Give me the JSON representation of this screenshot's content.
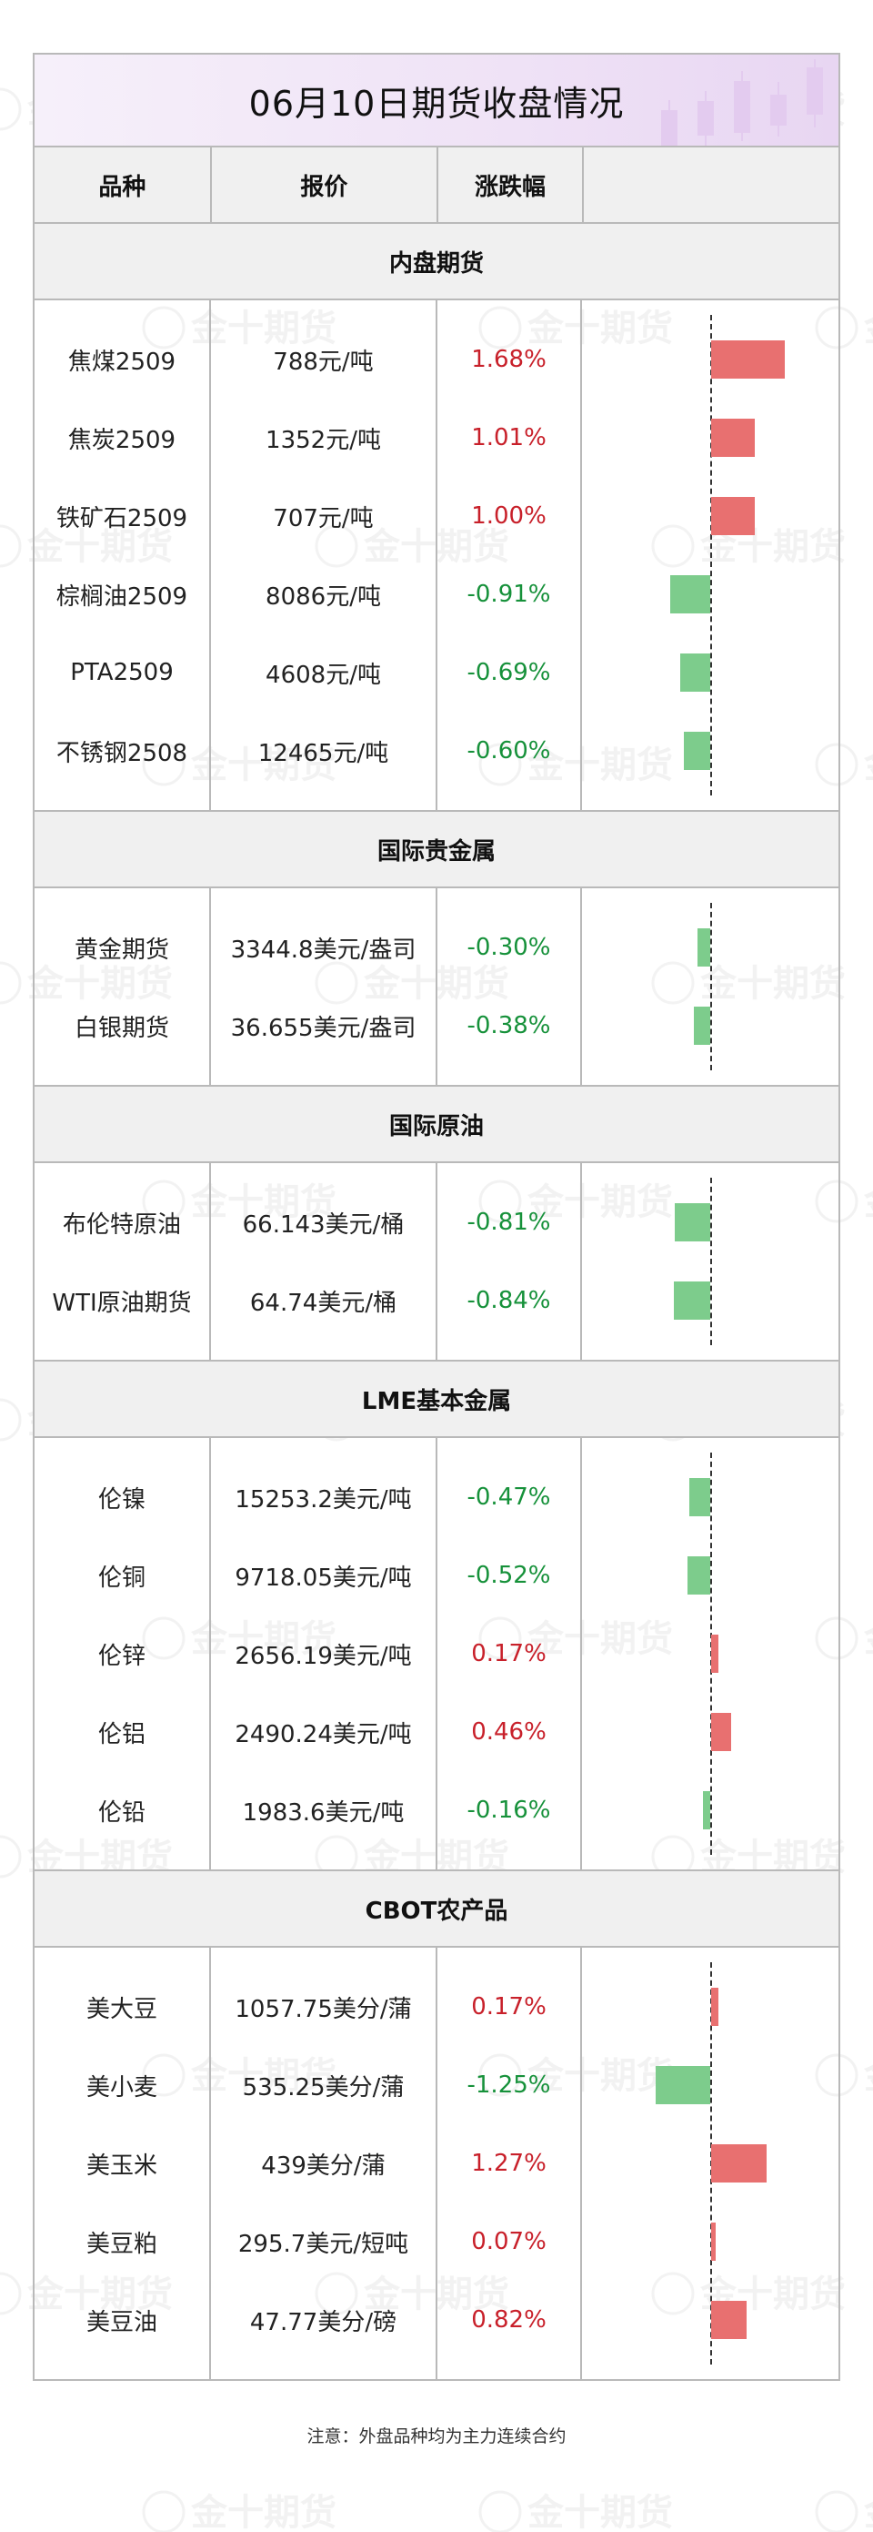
{
  "title": "06月10日期货收盘情况",
  "header": {
    "col_name": "品种",
    "col_price": "报价",
    "col_change": "涨跌幅"
  },
  "colors": {
    "up": "#c8202a",
    "down": "#16913a",
    "bar_up": "#e87070",
    "bar_down": "#7dcc8c"
  },
  "sections": [
    {
      "title": "内盘期货",
      "rows": [
        {
          "name": "焦煤2509",
          "price": "788元/吨",
          "change": "1.68%",
          "value": 1.68
        },
        {
          "name": "焦炭2509",
          "price": "1352元/吨",
          "change": "1.01%",
          "value": 1.01
        },
        {
          "name": "铁矿石2509",
          "price": "707元/吨",
          "change": "1.00%",
          "value": 1.0
        },
        {
          "name": "棕榈油2509",
          "price": "8086元/吨",
          "change": "-0.91%",
          "value": -0.91
        },
        {
          "name": "PTA2509",
          "price": "4608元/吨",
          "change": "-0.69%",
          "value": -0.69
        },
        {
          "name": "不锈钢2508",
          "price": "12465元/吨",
          "change": "-0.60%",
          "value": -0.6
        }
      ]
    },
    {
      "title": "国际贵金属",
      "rows": [
        {
          "name": "黄金期货",
          "price": "3344.8美元/盎司",
          "change": "-0.30%",
          "value": -0.3
        },
        {
          "name": "白银期货",
          "price": "36.655美元/盎司",
          "change": "-0.38%",
          "value": -0.38
        }
      ]
    },
    {
      "title": "国际原油",
      "rows": [
        {
          "name": "布伦特原油",
          "price": "66.143美元/桶",
          "change": "-0.81%",
          "value": -0.81
        },
        {
          "name": "WTI原油期货",
          "price": "64.74美元/桶",
          "change": "-0.84%",
          "value": -0.84
        }
      ]
    },
    {
      "title": "LME基本金属",
      "rows": [
        {
          "name": "伦镍",
          "price": "15253.2美元/吨",
          "change": "-0.47%",
          "value": -0.47
        },
        {
          "name": "伦铜",
          "price": "9718.05美元/吨",
          "change": "-0.52%",
          "value": -0.52
        },
        {
          "name": "伦锌",
          "price": "2656.19美元/吨",
          "change": "0.17%",
          "value": 0.17
        },
        {
          "name": "伦铝",
          "price": "2490.24美元/吨",
          "change": "0.46%",
          "value": 0.46
        },
        {
          "name": "伦铅",
          "price": "1983.6美元/吨",
          "change": "-0.16%",
          "value": -0.16
        }
      ]
    },
    {
      "title": "CBOT农产品",
      "rows": [
        {
          "name": "美大豆",
          "price": "1057.75美分/蒲",
          "change": "0.17%",
          "value": 0.17
        },
        {
          "name": "美小麦",
          "price": "535.25美分/蒲",
          "change": "-1.25%",
          "value": -1.25
        },
        {
          "name": "美玉米",
          "price": "439美分/蒲",
          "change": "1.27%",
          "value": 1.27
        },
        {
          "name": "美豆粕",
          "price": "295.7美元/短吨",
          "change": "0.07%",
          "value": 0.07
        },
        {
          "name": "美豆油",
          "price": "47.77美分/磅",
          "change": "0.82%",
          "value": 0.82
        }
      ]
    }
  ],
  "watermark_text": "金十期货",
  "footnote": "注意：外盘品种均为主力连续合约"
}
